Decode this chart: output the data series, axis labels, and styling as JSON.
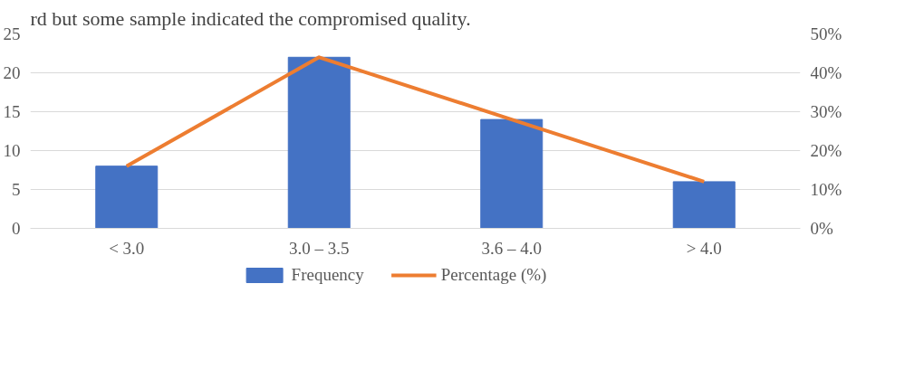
{
  "chart_data": {
    "type": "bar",
    "annotations": [
      "rd but some sample indicated the compromised quality."
    ],
    "categories": [
      "< 3.0",
      "3.0 – 3.5",
      "3.6 – 4.0",
      "> 4.0"
    ],
    "series": [
      {
        "name": "Frequency",
        "color": "#4472c4",
        "values": [
          8,
          22,
          14,
          6
        ]
      },
      {
        "name": "Percentage (%)",
        "type": "line",
        "axis": "y2",
        "color": "#ed7d31",
        "values": [
          16,
          44,
          28,
          12
        ]
      }
    ],
    "ylim": [
      0,
      25
    ],
    "yticks": [
      0,
      5,
      10,
      15,
      20,
      25
    ],
    "y2lim": [
      0,
      50
    ],
    "y2ticks": [
      {
        "value": 0,
        "label": "0%"
      },
      {
        "value": 10,
        "label": "10%"
      },
      {
        "value": 20,
        "label": "20%"
      },
      {
        "value": 30,
        "label": "30%"
      },
      {
        "value": 40,
        "label": "40%"
      },
      {
        "value": 50,
        "label": "50%"
      }
    ],
    "grid": "y",
    "legend": "bottom",
    "marker": "none",
    "line_style": "solid"
  }
}
